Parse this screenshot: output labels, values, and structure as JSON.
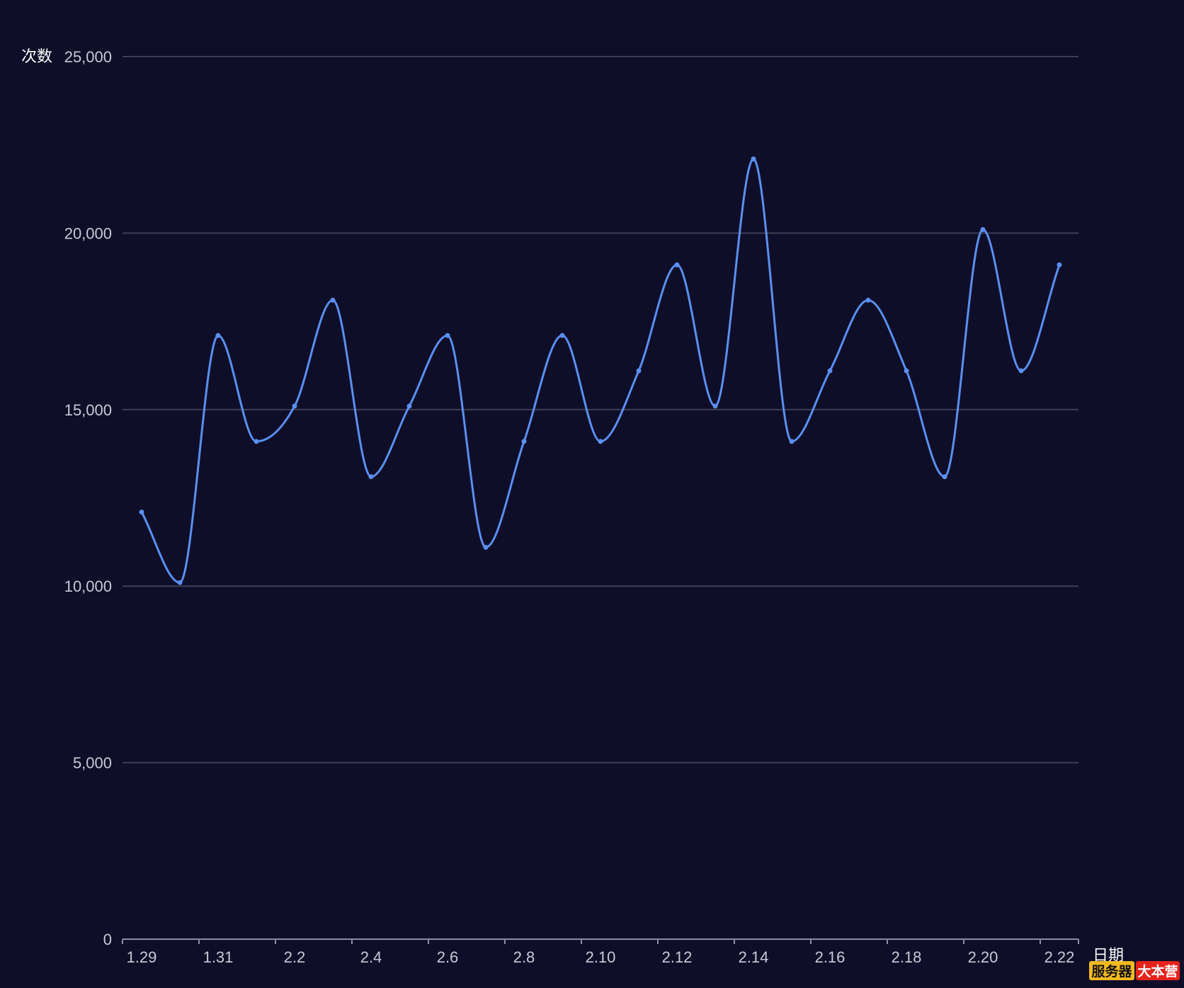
{
  "colors": {
    "background": "#0f0e29",
    "grid": "#3e3d52",
    "axis": "#8b8ca0",
    "tick_text": "#c8c9d6",
    "axis_name": "#ffffff",
    "series": "#5b8ff0",
    "badge_left_bg": "#f4b91f",
    "badge_left_text": "#111111",
    "badge_right_bg": "#e5231b",
    "badge_right_text": "#ffffff"
  },
  "chart_data": {
    "type": "line",
    "smooth": true,
    "ylabel": "次数",
    "xlabel": "日期",
    "ylim": [
      0,
      25000
    ],
    "yticks": [
      0,
      5000,
      10000,
      15000,
      20000,
      25000
    ],
    "ytick_labels": [
      "0",
      "5,000",
      "10,000",
      "15,000",
      "20,000",
      "25,000"
    ],
    "grid": true,
    "categories": [
      "1.29",
      "1.30",
      "1.31",
      "2.1",
      "2.2",
      "2.3",
      "2.4",
      "2.5",
      "2.6",
      "2.7",
      "2.8",
      "2.9",
      "2.10",
      "2.11",
      "2.12",
      "2.13",
      "2.14",
      "2.15",
      "2.16",
      "2.17",
      "2.18",
      "2.19",
      "2.20",
      "2.21",
      "2.22"
    ],
    "xtick_labels_shown": [
      "1.29",
      "1.31",
      "2.2",
      "2.4",
      "2.6",
      "2.8",
      "2.10",
      "2.12",
      "2.14",
      "2.16",
      "2.18",
      "2.20",
      "2.22"
    ],
    "series": [
      {
        "values": [
          12100,
          10100,
          17100,
          14100,
          15100,
          18100,
          13100,
          15100,
          17100,
          11100,
          14100,
          17100,
          14100,
          16100,
          19100,
          15100,
          22100,
          14100,
          16100,
          18100,
          16100,
          13100,
          20100,
          16100,
          19100
        ]
      }
    ]
  },
  "watermark": {
    "left": "服务器",
    "right": "大本营"
  }
}
